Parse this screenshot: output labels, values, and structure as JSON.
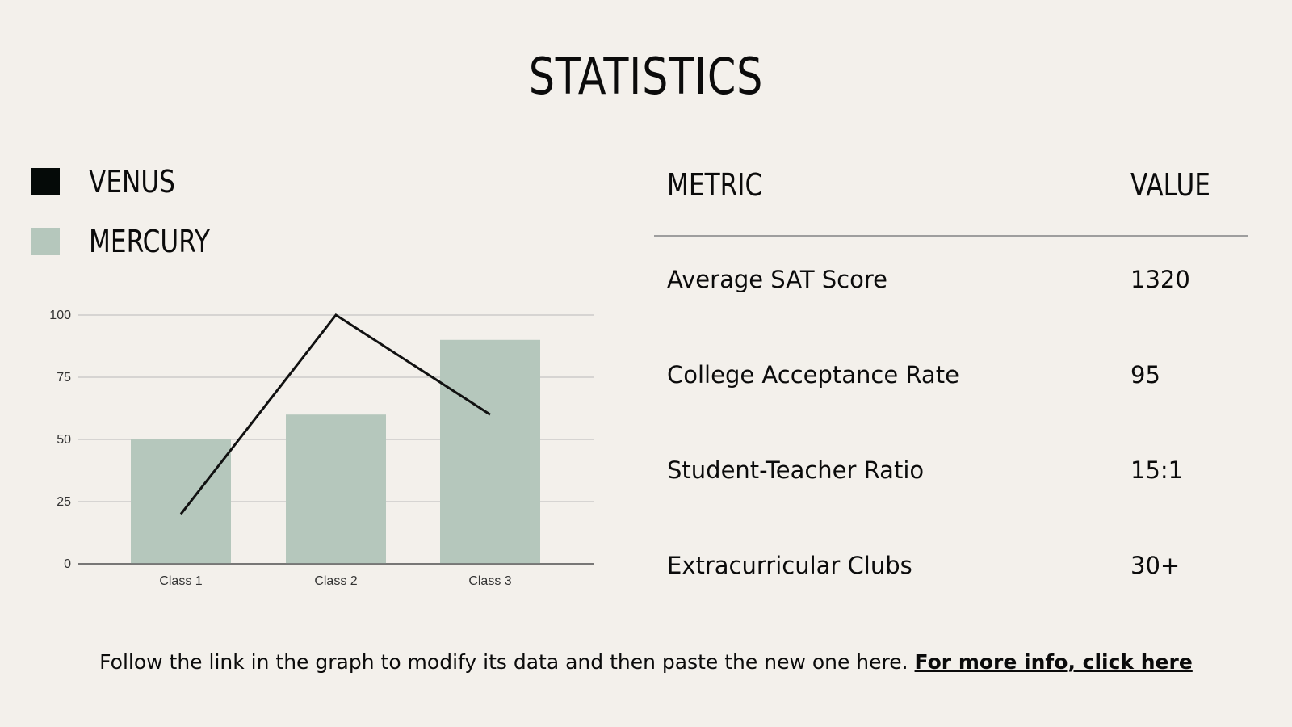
{
  "title": "STATISTICS",
  "legend": [
    {
      "label": "VENUS",
      "color": "#050a08"
    },
    {
      "label": "MERCURY",
      "color": "#b5c7bc"
    }
  ],
  "chart_data": {
    "type": "bar",
    "categories": [
      "Class 1",
      "Class 2",
      "Class 3"
    ],
    "series": [
      {
        "name": "MERCURY",
        "type": "bar",
        "color": "#b5c7bc",
        "values": [
          50,
          60,
          90
        ]
      },
      {
        "name": "VENUS",
        "type": "line",
        "color": "#111111",
        "values": [
          20,
          100,
          60
        ]
      }
    ],
    "ylim": [
      0,
      100
    ],
    "yticks": [
      0,
      25,
      50,
      75,
      100
    ],
    "grid": true,
    "legend_position": "top-left",
    "xlabel": "",
    "ylabel": "",
    "title": ""
  },
  "table": {
    "header_metric": "METRIC",
    "header_value": "VALUE",
    "rows": [
      {
        "metric": "Average SAT Score",
        "value": "1320"
      },
      {
        "metric": "College Acceptance Rate",
        "value": "95"
      },
      {
        "metric": "Student-Teacher Ratio",
        "value": "15:1"
      },
      {
        "metric": "Extracurricular Clubs",
        "value": "30+"
      }
    ]
  },
  "footer": {
    "text": "Follow the link in the graph to modify its data and then paste the new one here.",
    "link_text": "For more info, click here"
  }
}
